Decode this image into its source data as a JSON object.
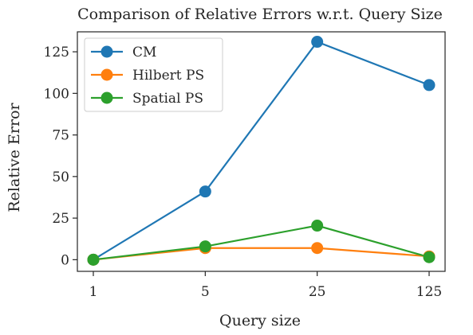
{
  "chart_data": {
    "type": "line",
    "title": "Comparison of Relative Errors w.r.t. Query Size",
    "xlabel": "Query size",
    "ylabel": "Relative Error",
    "categories": [
      "1",
      "5",
      "25",
      "125"
    ],
    "ylim": [
      -7,
      137
    ],
    "yticks": [
      0,
      25,
      50,
      75,
      100,
      125
    ],
    "grid": false,
    "legend_position": "top-left",
    "series": [
      {
        "name": "CM",
        "color": "#1f77b4",
        "values": [
          0,
          41,
          131,
          105
        ]
      },
      {
        "name": "Hilbert PS",
        "color": "#ff7f0e",
        "values": [
          0,
          7,
          7,
          2
        ]
      },
      {
        "name": "Spatial PS",
        "color": "#2ca02c",
        "values": [
          0,
          8,
          20.5,
          1.5
        ]
      }
    ]
  }
}
